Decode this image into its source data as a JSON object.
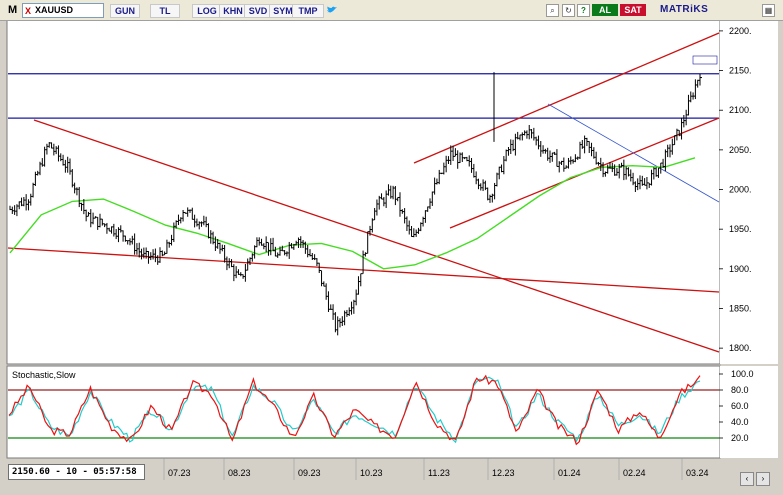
{
  "toolbar": {
    "mode_symbol": "M",
    "close_symbol": "X",
    "ticker": "XAUUSD",
    "buttons": [
      "GUN",
      "TL",
      "LOG",
      "KHN",
      "SVD",
      "SYM",
      "TMP"
    ],
    "right_icons": [
      "search-icon",
      "refresh-icon",
      "help-icon",
      "calendar-icon"
    ],
    "buy_label": "AL",
    "sell_label": "SAT",
    "brand": "MATRiKS"
  },
  "status": {
    "readout": "2150.60 - 10 - 05:57:58"
  },
  "oscillator": {
    "label": "Stochastic,Slow",
    "levels": [
      100,
      80,
      60,
      40,
      20
    ],
    "upper_line": 80,
    "lower_line": 20
  },
  "x_axis": {
    "labels": [
      "07.23",
      "08.23",
      "09.23",
      "10.23",
      "11.23",
      "12.23",
      "01.24",
      "02.24",
      "03.24"
    ]
  },
  "colors": {
    "bars": "#000000",
    "moving_average": "#44dd22",
    "channel": "#cc1111",
    "horizontal_levels": "#1a1aa0",
    "stoch_k": "#ee1111",
    "stoch_d": "#22cccc",
    "overbought_line": "#992222",
    "oversold_line": "#118811",
    "blue_trend": "#3355cc"
  },
  "chart_data": {
    "type": "line",
    "title": "XAUUSD",
    "ylim": [
      1780,
      2215
    ],
    "y_ticks": [
      2200,
      2150,
      2100,
      2050,
      2000,
      1950,
      1900,
      1850,
      1800
    ],
    "x_labels": [
      "07.23",
      "08.23",
      "09.23",
      "10.23",
      "11.23",
      "12.23",
      "01.24",
      "02.24",
      "03.24"
    ],
    "last_price": 2150.6,
    "horizontal_levels": [
      2146,
      2090
    ],
    "price_path": [
      1975,
      1990,
      2058,
      2028,
      1965,
      1955,
      1942,
      1915,
      1915,
      1975,
      1958,
      1922,
      1885,
      1940,
      1915,
      1940,
      1905,
      1825,
      1865,
      1978,
      1998,
      1935,
      1995,
      2045,
      2030,
      1990,
      2050,
      2075,
      2045,
      2028,
      2058,
      2025,
      2025,
      2002,
      2032,
      2078,
      2148
    ],
    "moving_average": [
      1920,
      1968,
      1985,
      1988,
      1972,
      1955,
      1945,
      1932,
      1918,
      1930,
      1932,
      1922,
      1900,
      1905,
      1920,
      1938,
      1965,
      1992,
      2015,
      2028,
      2030,
      2028,
      2040
    ],
    "series": [
      {
        "name": "Stochastic,Slow",
        "values": [
          50,
          85,
          30,
          25,
          82,
          35,
          15,
          60,
          28,
          88,
          75,
          15,
          90,
          60,
          20,
          72,
          22,
          55,
          35,
          22,
          92,
          40,
          15,
          95,
          90,
          25,
          80,
          35,
          15,
          80,
          30,
          55,
          20,
          75,
          95
        ]
      },
      {
        "values": [
          45,
          80,
          35,
          22,
          78,
          40,
          18,
          55,
          30,
          85,
          80,
          20,
          85,
          65,
          25,
          68,
          25,
          50,
          38,
          25,
          88,
          45,
          18,
          92,
          92,
          30,
          75,
          40,
          18,
          75,
          35,
          50,
          25,
          70,
          92
        ]
      }
    ]
  }
}
